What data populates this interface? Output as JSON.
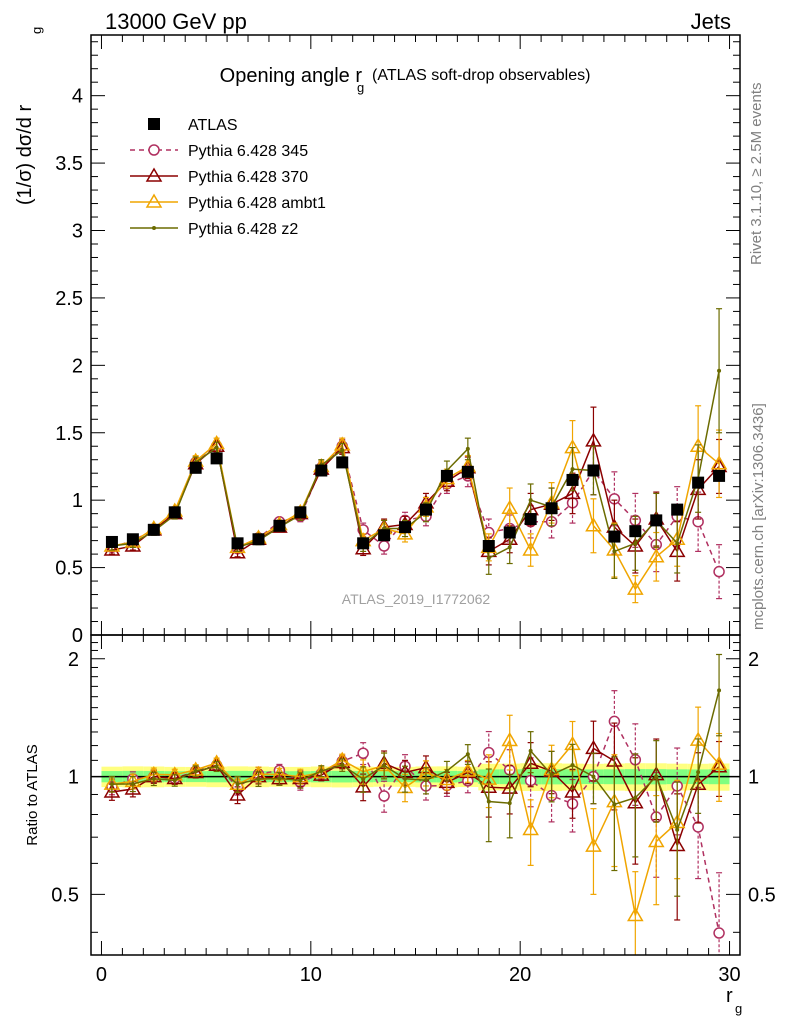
{
  "header": {
    "left": "13000 GeV pp",
    "right": "Jets"
  },
  "side_text": {
    "upper": "Rivet 3.1.10, ≥ 2.5M events",
    "lower": "mcplots.cern.ch [arXiv:1306.3436]"
  },
  "analysis_label": "ATLAS_2019_I1772062",
  "chart_data": [
    {
      "type": "scatter",
      "panel": "main",
      "title_main": "Opening angle r",
      "title_sub": "g",
      "title_paren": "(ATLAS soft-drop observables)",
      "ylabel": "(1/σ) dσ/d r",
      "ylabel_sub": "g",
      "xlabel": "r",
      "xlabel_sub": "g",
      "xlim": [
        -0.5,
        30.5
      ],
      "ylim": [
        0,
        4.45
      ],
      "yticks": [
        0,
        0.5,
        1,
        1.5,
        2,
        2.5,
        3,
        3.5,
        4
      ],
      "ytick_labels": [
        "0",
        "0.5",
        "1",
        "1.5",
        "2",
        "2.5",
        "3",
        "3.5",
        "4"
      ],
      "x": [
        0.5,
        1.5,
        2.5,
        3.5,
        4.5,
        5.5,
        6.5,
        7.5,
        8.5,
        9.5,
        10.5,
        11.5,
        12.5,
        13.5,
        14.5,
        15.5,
        16.5,
        17.5,
        18.5,
        19.5,
        20.5,
        21.5,
        22.5,
        23.5,
        24.5,
        25.5,
        26.5,
        27.5,
        28.5,
        29.5
      ],
      "legend_position": "top-left",
      "series": [
        {
          "name": "ATLAS",
          "color": "#000000",
          "marker": "square",
          "line": "none",
          "values": [
            0.69,
            0.71,
            0.78,
            0.91,
            1.24,
            1.31,
            0.68,
            0.71,
            0.81,
            0.91,
            1.22,
            1.28,
            0.68,
            0.74,
            0.8,
            0.93,
            1.18,
            1.21,
            0.66,
            0.76,
            0.86,
            0.94,
            1.15,
            1.22,
            0.73,
            0.77,
            0.85,
            0.93,
            1.13,
            1.18
          ]
        },
        {
          "name": "Pythia 6.428 345",
          "color": "#b03060",
          "marker": "circle",
          "line": "dashed",
          "values": [
            0.65,
            0.7,
            0.78,
            0.9,
            1.28,
            1.4,
            0.64,
            0.72,
            0.84,
            0.88,
            1.24,
            1.4,
            0.78,
            0.66,
            0.85,
            0.88,
            1.12,
            1.18,
            0.76,
            0.79,
            0.84,
            0.84,
            0.98,
            1.22,
            1.01,
            0.85,
            0.67,
            0.88,
            0.84,
            0.47
          ],
          "err": [
            0.03,
            0.03,
            0.03,
            0.03,
            0.04,
            0.04,
            0.03,
            0.03,
            0.03,
            0.04,
            0.04,
            0.05,
            0.05,
            0.06,
            0.06,
            0.07,
            0.07,
            0.08,
            0.1,
            0.1,
            0.12,
            0.12,
            0.15,
            0.18,
            0.2,
            0.2,
            0.2,
            0.22,
            0.22,
            0.2
          ]
        },
        {
          "name": "Pythia 6.428 370",
          "color": "#8b0000",
          "marker": "triangle",
          "line": "solid",
          "values": [
            0.63,
            0.66,
            0.78,
            0.9,
            1.27,
            1.4,
            0.61,
            0.71,
            0.8,
            0.9,
            1.23,
            1.39,
            0.64,
            0.8,
            0.82,
            0.98,
            1.14,
            1.24,
            0.62,
            0.71,
            0.93,
            0.97,
            1.05,
            1.44,
            0.8,
            0.66,
            0.86,
            0.62,
            1.08,
            1.25
          ],
          "err": [
            0.03,
            0.03,
            0.03,
            0.03,
            0.04,
            0.04,
            0.03,
            0.03,
            0.03,
            0.04,
            0.04,
            0.05,
            0.05,
            0.06,
            0.06,
            0.07,
            0.07,
            0.08,
            0.1,
            0.1,
            0.12,
            0.12,
            0.15,
            0.25,
            0.2,
            0.2,
            0.2,
            0.22,
            0.22,
            0.2
          ]
        },
        {
          "name": "Pythia 6.428 ambt1",
          "color": "#f0a500",
          "marker": "triangle",
          "line": "solid",
          "values": [
            0.66,
            0.69,
            0.79,
            0.92,
            1.29,
            1.42,
            0.65,
            0.72,
            0.82,
            0.91,
            1.25,
            1.41,
            0.7,
            0.79,
            0.75,
            0.95,
            1.16,
            1.25,
            0.65,
            0.94,
            0.63,
            0.98,
            1.39,
            0.81,
            0.63,
            0.34,
            0.58,
            0.71,
            1.4,
            1.27
          ],
          "err": [
            0.03,
            0.03,
            0.03,
            0.03,
            0.04,
            0.04,
            0.03,
            0.03,
            0.03,
            0.04,
            0.04,
            0.05,
            0.05,
            0.06,
            0.06,
            0.07,
            0.07,
            0.08,
            0.1,
            0.15,
            0.12,
            0.15,
            0.2,
            0.2,
            0.2,
            0.1,
            0.18,
            0.2,
            0.3,
            0.25
          ]
        },
        {
          "name": "Pythia 6.428 z2",
          "color": "#6b6b00",
          "marker": "dot",
          "line": "solid",
          "values": [
            0.66,
            0.68,
            0.77,
            0.89,
            1.28,
            1.39,
            0.65,
            0.7,
            0.8,
            0.89,
            1.26,
            1.37,
            0.67,
            0.79,
            0.79,
            0.91,
            1.22,
            1.38,
            0.57,
            0.65,
            1.0,
            0.95,
            1.23,
            1.22,
            0.62,
            0.68,
            0.85,
            0.68,
            1.16,
            1.96
          ],
          "err": [
            0.03,
            0.03,
            0.03,
            0.03,
            0.04,
            0.04,
            0.03,
            0.03,
            0.03,
            0.04,
            0.04,
            0.05,
            0.05,
            0.06,
            0.06,
            0.07,
            0.07,
            0.08,
            0.12,
            0.12,
            0.12,
            0.14,
            0.16,
            0.18,
            0.2,
            0.2,
            0.2,
            0.22,
            0.25,
            0.46
          ]
        }
      ]
    },
    {
      "type": "scatter",
      "panel": "ratio",
      "ylabel": "Ratio to ATLAS",
      "xlim": [
        -0.5,
        30.5
      ],
      "ylim": [
        0.35,
        2.3
      ],
      "yticks": [
        0.5,
        1,
        2
      ],
      "ytick_labels": [
        "0.5",
        "1",
        "2"
      ],
      "xticks": [
        0,
        10,
        20,
        30
      ],
      "xtick_labels": [
        "0",
        "10",
        "20",
        "30"
      ],
      "reference": 1,
      "series_ratio_from": "main"
    }
  ]
}
